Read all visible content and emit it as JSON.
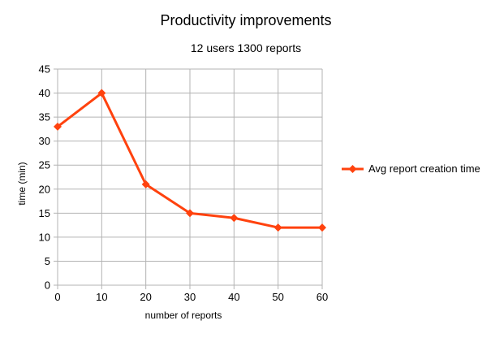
{
  "chart_data": {
    "type": "line",
    "title": "Productivity improvements",
    "subtitle": "12 users 1300 reports",
    "xlabel": "number of reports",
    "ylabel": "time (min)",
    "x": [
      0,
      10,
      20,
      30,
      40,
      50,
      60
    ],
    "xlim": [
      0,
      60
    ],
    "ylim": [
      0,
      45
    ],
    "xticks": [
      "0",
      "10",
      "20",
      "30",
      "40",
      "50",
      "60"
    ],
    "yticks": [
      "0",
      "5",
      "10",
      "15",
      "20",
      "25",
      "30",
      "35",
      "40",
      "45"
    ],
    "grid": true,
    "legend_position": "right",
    "series": [
      {
        "name": "Avg report creation time",
        "color": "#ff420e",
        "marker": "diamond",
        "values": [
          33,
          40,
          21,
          15,
          14,
          12,
          12
        ]
      }
    ]
  }
}
